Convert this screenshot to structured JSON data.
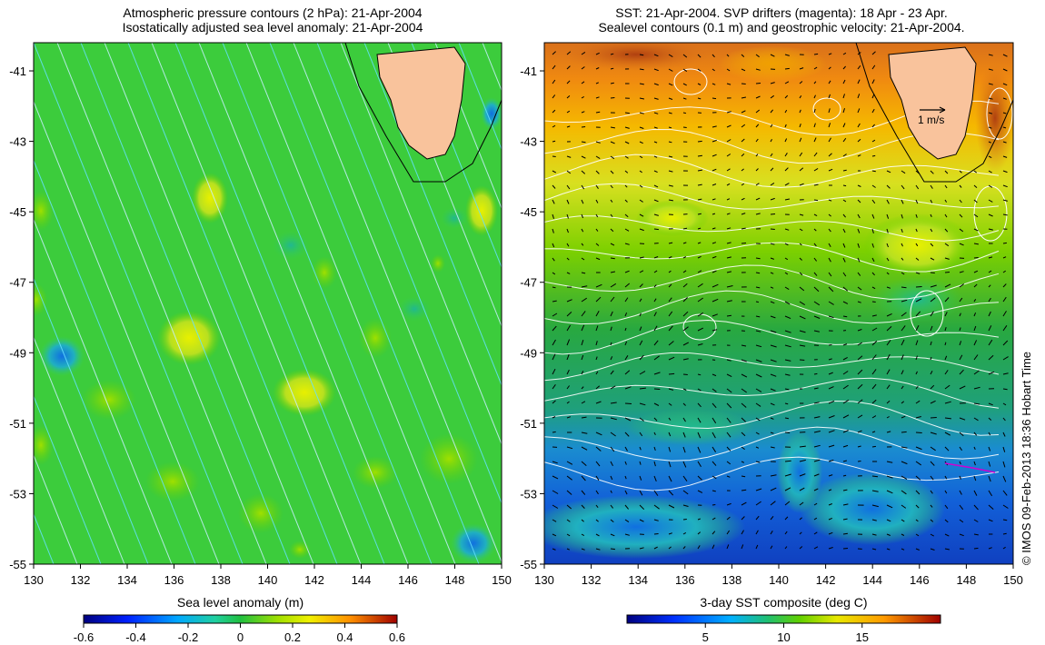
{
  "left_panel": {
    "title_line1": "Atmospheric pressure contours (2 hPa): 21-Apr-2004",
    "title_line2": "Isostatically adjusted sea level anomaly: 21-Apr-2004",
    "colorbar_label": "Sea level anomaly (m)",
    "colorbar_ticks": [
      "-0.6",
      "-0.4",
      "-0.2",
      "0",
      "0.2",
      "0.4",
      "0.6"
    ]
  },
  "right_panel": {
    "title_line1": "SST: 21-Apr-2004. SVP drifters (magenta): 18 Apr - 23 Apr.",
    "title_line2": "Sealevel contours (0.1 m) and geostrophic velocity: 21-Apr-2004.",
    "colorbar_label": "3-day SST composite (deg C)",
    "colorbar_ticks": [
      "5",
      "10",
      "15"
    ],
    "velocity_scale_label": "1 m/s"
  },
  "axes": {
    "lat_ticks": [
      "-41",
      "-43",
      "-45",
      "-47",
      "-49",
      "-51",
      "-53",
      "-55"
    ],
    "lon_ticks": [
      "130",
      "132",
      "134",
      "136",
      "138",
      "140",
      "142",
      "144",
      "146",
      "148",
      "150"
    ]
  },
  "credit": "© IMOS 09-Feb-2013 18:36 Hobart Time",
  "colors": {
    "land": "#f9c39c",
    "anomaly_base": "#33cc33",
    "contour_cyan": "#66e0ff"
  }
}
